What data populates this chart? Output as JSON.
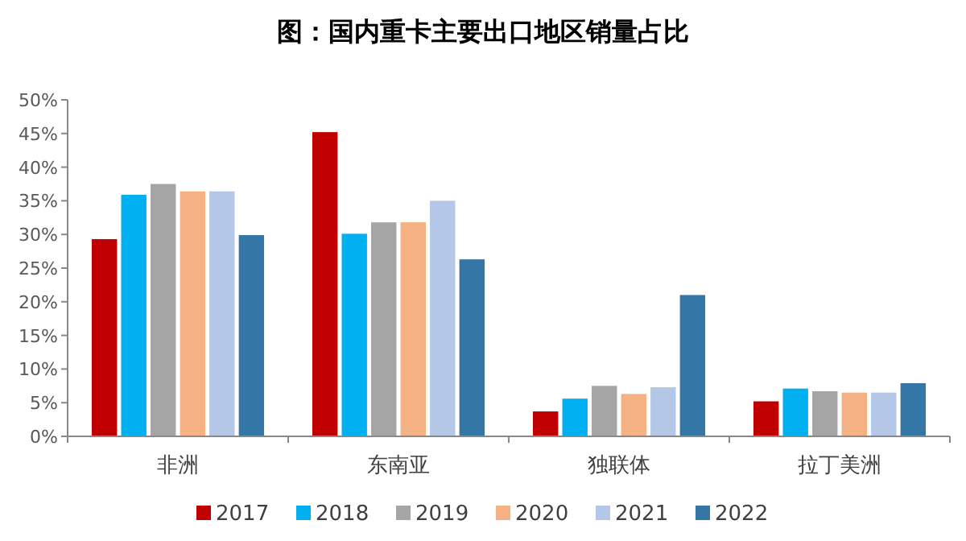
{
  "chart_data": {
    "type": "bar",
    "title": "图：国内重卡主要出口地区销量占比",
    "categories": [
      "非洲",
      "东南亚",
      "独联体",
      "拉丁美洲"
    ],
    "series": [
      {
        "name": "2017",
        "color": "#c00000",
        "values": [
          29.3,
          45.2,
          3.7,
          5.2
        ]
      },
      {
        "name": "2018",
        "color": "#00b0f0",
        "values": [
          35.9,
          30.1,
          5.6,
          7.1
        ]
      },
      {
        "name": "2019",
        "color": "#a5a5a5",
        "values": [
          37.5,
          31.8,
          7.5,
          6.7
        ]
      },
      {
        "name": "2020",
        "color": "#f4b183",
        "values": [
          36.4,
          31.8,
          6.3,
          6.5
        ]
      },
      {
        "name": "2021",
        "color": "#b4c7e7",
        "values": [
          36.4,
          35.0,
          7.3,
          6.5
        ]
      },
      {
        "name": "2022",
        "color": "#3476a6",
        "values": [
          29.9,
          26.3,
          21.0,
          7.9
        ]
      }
    ],
    "ylim": [
      0,
      50
    ],
    "yticks": [
      {
        "value": 0,
        "label": "0%"
      },
      {
        "value": 5,
        "label": "5%"
      },
      {
        "value": 10,
        "label": "10%"
      },
      {
        "value": 15,
        "label": "15%"
      },
      {
        "value": 20,
        "label": "20%"
      },
      {
        "value": 25,
        "label": "25%"
      },
      {
        "value": 30,
        "label": "30%"
      },
      {
        "value": 35,
        "label": "35%"
      },
      {
        "value": 40,
        "label": "40%"
      },
      {
        "value": 45,
        "label": "45%"
      },
      {
        "value": 50,
        "label": "50%"
      }
    ],
    "grid": false,
    "legend": "bottom"
  }
}
